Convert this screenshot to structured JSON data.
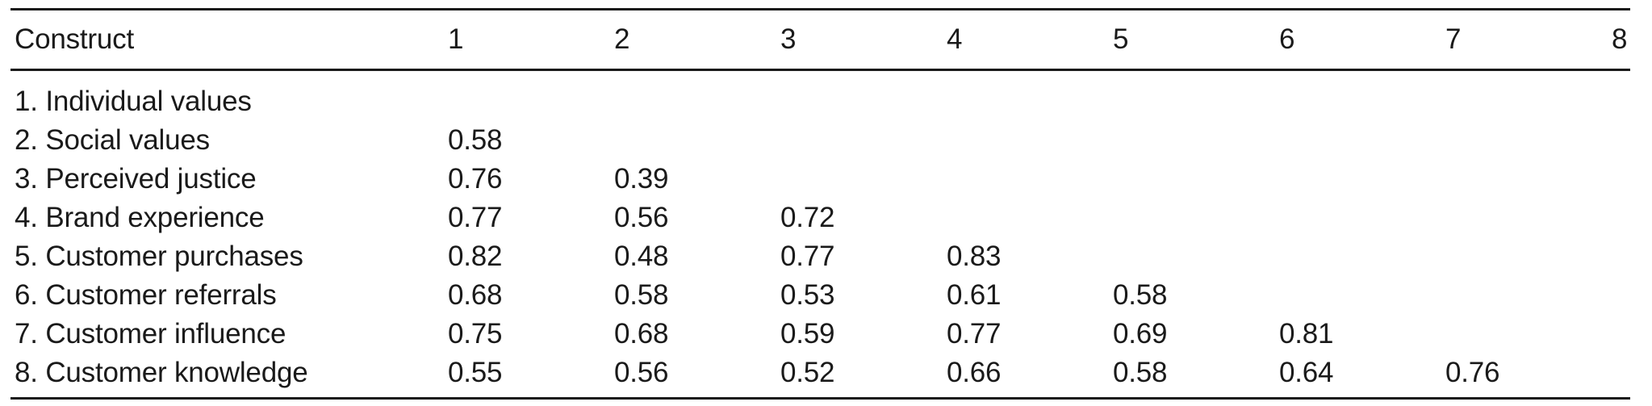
{
  "table": {
    "columns": [
      "Construct",
      "1",
      "2",
      "3",
      "4",
      "5",
      "6",
      "7",
      "8"
    ],
    "rows": [
      {
        "construct": "1. Individual values",
        "cells": [
          "",
          "",
          "",
          "",
          "",
          "",
          "",
          ""
        ]
      },
      {
        "construct": "2. Social values",
        "cells": [
          "0.58",
          "",
          "",
          "",
          "",
          "",
          "",
          ""
        ]
      },
      {
        "construct": "3. Perceived justice",
        "cells": [
          "0.76",
          "0.39",
          "",
          "",
          "",
          "",
          "",
          ""
        ]
      },
      {
        "construct": "4. Brand experience",
        "cells": [
          "0.77",
          "0.56",
          "0.72",
          "",
          "",
          "",
          "",
          ""
        ]
      },
      {
        "construct": "5. Customer purchases",
        "cells": [
          "0.82",
          "0.48",
          "0.77",
          "0.83",
          "",
          "",
          "",
          ""
        ]
      },
      {
        "construct": "6. Customer referrals",
        "cells": [
          "0.68",
          "0.58",
          "0.53",
          "0.61",
          "0.58",
          "",
          "",
          ""
        ]
      },
      {
        "construct": "7. Customer influence",
        "cells": [
          "0.75",
          "0.68",
          "0.59",
          "0.77",
          "0.69",
          "0.81",
          "",
          ""
        ]
      },
      {
        "construct": "8. Customer knowledge",
        "cells": [
          "0.55",
          "0.56",
          "0.52",
          "0.66",
          "0.58",
          "0.64",
          "0.76",
          ""
        ]
      }
    ]
  },
  "colors": {
    "text": "#1a1a1a",
    "rule": "#1a1a1a",
    "background": "#ffffff"
  }
}
